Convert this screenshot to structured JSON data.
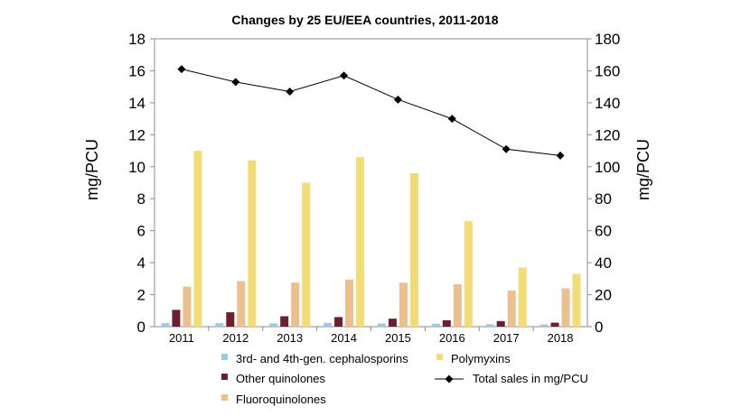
{
  "chart_data": {
    "type": "bar",
    "title": "Changes by 25 EU/EEA countries, 2011-2018",
    "categories": [
      "2011",
      "2012",
      "2013",
      "2014",
      "2015",
      "2016",
      "2017",
      "2018"
    ],
    "ylabel": "mg/PCU",
    "y2label": "mg/PCU",
    "ylim": [
      0,
      18
    ],
    "y2lim": [
      0,
      180
    ],
    "yticks": [
      "0",
      "2",
      "4",
      "6",
      "8",
      "10",
      "12",
      "14",
      "16",
      "18"
    ],
    "y2ticks": [
      "0",
      "20",
      "40",
      "60",
      "80",
      "100",
      "120",
      "140",
      "160",
      "180"
    ],
    "grid": false,
    "legend_position": "bottom",
    "series": [
      {
        "name": "3rd- and 4th-gen. cephalosporins",
        "type": "bar",
        "axis": "left",
        "color": "#9ecae1",
        "values": [
          0.22,
          0.22,
          0.21,
          0.23,
          0.2,
          0.18,
          0.15,
          0.14
        ]
      },
      {
        "name": "Other quinolones",
        "type": "bar",
        "axis": "left",
        "color": "#6b1f2f",
        "values": [
          1.05,
          0.9,
          0.65,
          0.6,
          0.5,
          0.4,
          0.35,
          0.25
        ]
      },
      {
        "name": "Fluoroquinolones",
        "type": "bar",
        "axis": "left",
        "color": "#ebbf8e",
        "values": [
          2.5,
          2.85,
          2.75,
          2.95,
          2.75,
          2.65,
          2.25,
          2.4
        ]
      },
      {
        "name": "Polymyxins",
        "type": "bar",
        "axis": "left",
        "color": "#f2dc75",
        "values": [
          11.0,
          10.4,
          9.0,
          10.6,
          9.6,
          6.6,
          3.7,
          3.3
        ]
      },
      {
        "name": "Total sales in mg/PCU",
        "type": "line",
        "axis": "right",
        "color": "#000000",
        "values": [
          161,
          153,
          147,
          157,
          142,
          130,
          111,
          107
        ]
      }
    ]
  }
}
